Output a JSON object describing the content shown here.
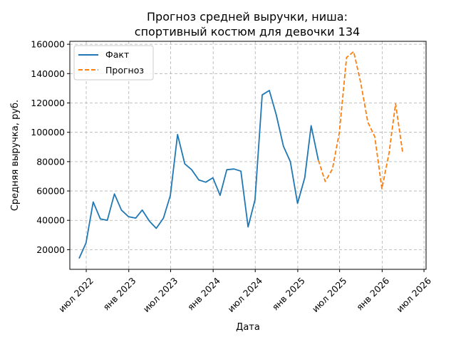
{
  "chart_data": {
    "type": "line",
    "title": [
      "Прогноз средней выручки, ниша:",
      "спортивный костюм для девочки 134"
    ],
    "xlabel": "Дата",
    "ylabel": "Средняя выручка, руб.",
    "x_axis_type": "date",
    "xlim": [
      "2022-04-21",
      "2026-07-10"
    ],
    "ylim": [
      6600,
      162000
    ],
    "grid": true,
    "legend_position": "top-left",
    "x_ticks": [
      {
        "date": "2022-07-01",
        "label": "июл 2022"
      },
      {
        "date": "2023-01-01",
        "label": "янв 2023"
      },
      {
        "date": "2023-07-01",
        "label": "июл 2023"
      },
      {
        "date": "2024-01-01",
        "label": "янв 2024"
      },
      {
        "date": "2024-07-01",
        "label": "июл 2024"
      },
      {
        "date": "2025-01-01",
        "label": "янв 2025"
      },
      {
        "date": "2025-07-01",
        "label": "июл 2025"
      },
      {
        "date": "2026-01-01",
        "label": "янв 2026"
      },
      {
        "date": "2026-07-01",
        "label": "июл 2026"
      }
    ],
    "y_ticks": [
      {
        "value": 20000,
        "label": "20000"
      },
      {
        "value": 40000,
        "label": "40000"
      },
      {
        "value": 60000,
        "label": "60000"
      },
      {
        "value": 80000,
        "label": "80000"
      },
      {
        "value": 100000,
        "label": "100000"
      },
      {
        "value": 120000,
        "label": "120000"
      },
      {
        "value": 140000,
        "label": "140000"
      },
      {
        "value": 160000,
        "label": "160000"
      }
    ],
    "series": [
      {
        "name": "Факт",
        "color": "#1f77b4",
        "style": "solid",
        "points": [
          {
            "x": "2022-05-31",
            "y": 14000
          },
          {
            "x": "2022-06-30",
            "y": 24500
          },
          {
            "x": "2022-07-31",
            "y": 52500
          },
          {
            "x": "2022-08-31",
            "y": 41000
          },
          {
            "x": "2022-09-30",
            "y": 40000
          },
          {
            "x": "2022-10-31",
            "y": 58000
          },
          {
            "x": "2022-11-30",
            "y": 47000
          },
          {
            "x": "2022-12-31",
            "y": 42500
          },
          {
            "x": "2023-01-31",
            "y": 41500
          },
          {
            "x": "2023-02-28",
            "y": 47000
          },
          {
            "x": "2023-03-31",
            "y": 39500
          },
          {
            "x": "2023-04-30",
            "y": 34500
          },
          {
            "x": "2023-05-31",
            "y": 41500
          },
          {
            "x": "2023-06-30",
            "y": 57000
          },
          {
            "x": "2023-07-31",
            "y": 98500
          },
          {
            "x": "2023-08-31",
            "y": 78500
          },
          {
            "x": "2023-09-30",
            "y": 74500
          },
          {
            "x": "2023-10-31",
            "y": 67500
          },
          {
            "x": "2023-11-30",
            "y": 66000
          },
          {
            "x": "2023-12-31",
            "y": 69000
          },
          {
            "x": "2024-01-31",
            "y": 57000
          },
          {
            "x": "2024-02-29",
            "y": 74500
          },
          {
            "x": "2024-03-31",
            "y": 75000
          },
          {
            "x": "2024-04-30",
            "y": 73500
          },
          {
            "x": "2024-05-31",
            "y": 35500
          },
          {
            "x": "2024-06-30",
            "y": 54000
          },
          {
            "x": "2024-07-31",
            "y": 125500
          },
          {
            "x": "2024-08-31",
            "y": 128500
          },
          {
            "x": "2024-09-30",
            "y": 112000
          },
          {
            "x": "2024-10-31",
            "y": 90500
          },
          {
            "x": "2024-11-30",
            "y": 80000
          },
          {
            "x": "2024-12-31",
            "y": 51500
          },
          {
            "x": "2025-01-31",
            "y": 69000
          },
          {
            "x": "2025-02-28",
            "y": 104500
          },
          {
            "x": "2025-03-31",
            "y": 81000
          }
        ]
      },
      {
        "name": "Прогноз",
        "color": "#ff7f0e",
        "style": "dashed",
        "points": [
          {
            "x": "2025-03-31",
            "y": 81000
          },
          {
            "x": "2025-04-30",
            "y": 66500
          },
          {
            "x": "2025-05-31",
            "y": 75000
          },
          {
            "x": "2025-06-30",
            "y": 100000
          },
          {
            "x": "2025-07-31",
            "y": 151000
          },
          {
            "x": "2025-08-31",
            "y": 155000
          },
          {
            "x": "2025-09-30",
            "y": 134000
          },
          {
            "x": "2025-10-31",
            "y": 107000
          },
          {
            "x": "2025-11-30",
            "y": 97000
          },
          {
            "x": "2025-12-31",
            "y": 61500
          },
          {
            "x": "2026-01-31",
            "y": 86000
          },
          {
            "x": "2026-02-28",
            "y": 119500
          },
          {
            "x": "2026-03-31",
            "y": 86000
          }
        ]
      }
    ]
  }
}
